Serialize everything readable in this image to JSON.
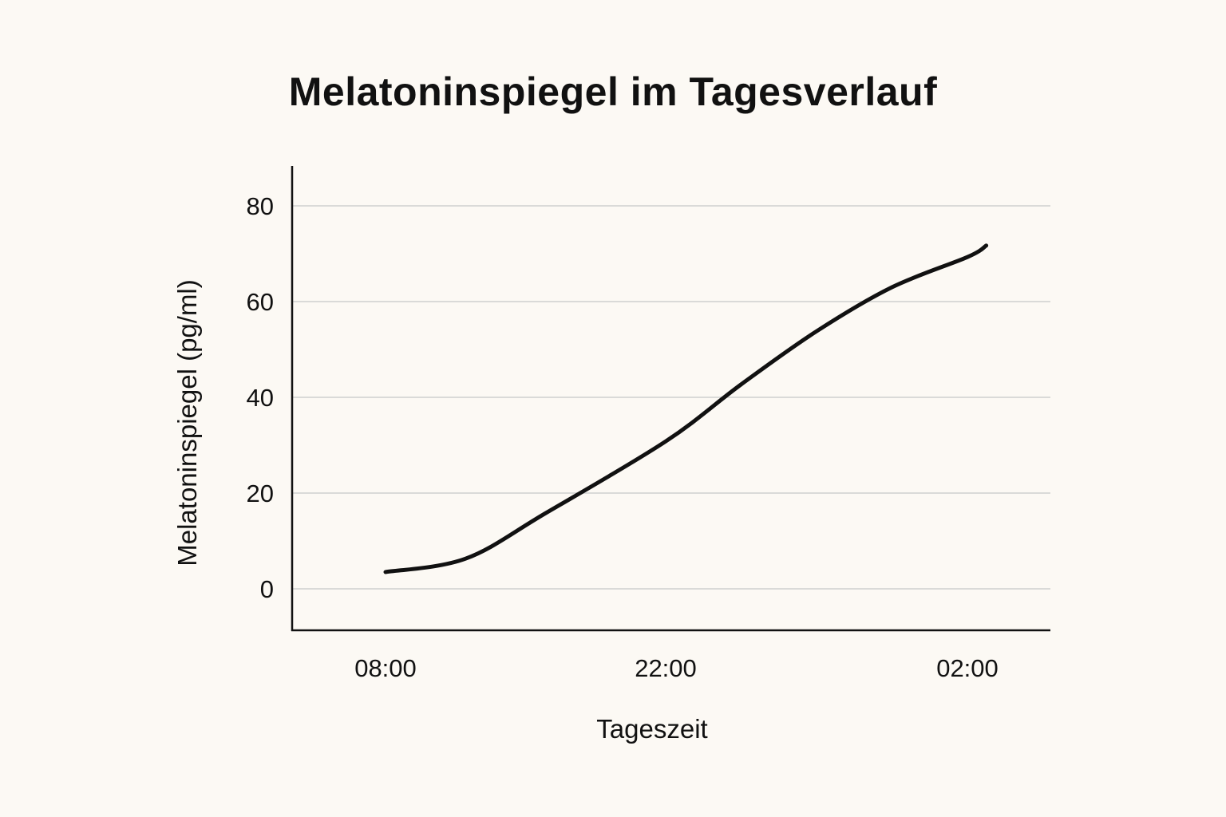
{
  "chart_data": {
    "type": "line",
    "title": "Melatoninspiegel im Tagesverlauf",
    "xlabel": "Tageszeit",
    "ylabel": "Melatoninspiegel (pg/ml)",
    "x_ticks": [
      "08:00",
      "22:00",
      "02:00"
    ],
    "y_ticks": [
      0,
      20,
      40,
      60,
      80
    ],
    "ylim": [
      -8.5,
      88
    ],
    "grid": true,
    "line_color": "#111111",
    "grid_color": "#cfcfcf",
    "series": [
      {
        "points": [
          {
            "x": "08:00",
            "y": 3.5
          },
          {
            "x": "12:00",
            "y": 6.3
          },
          {
            "x": "16:00",
            "y": 15.8
          },
          {
            "x": "22:00",
            "y": 30.8
          },
          {
            "x": "23:00",
            "y": 42.7
          },
          {
            "x": "00:00",
            "y": 53.8
          },
          {
            "x": "01:00",
            "y": 63.0
          },
          {
            "x": "02:00",
            "y": 69.3
          },
          {
            "x": "02:15",
            "y": 71.7
          }
        ]
      }
    ]
  }
}
